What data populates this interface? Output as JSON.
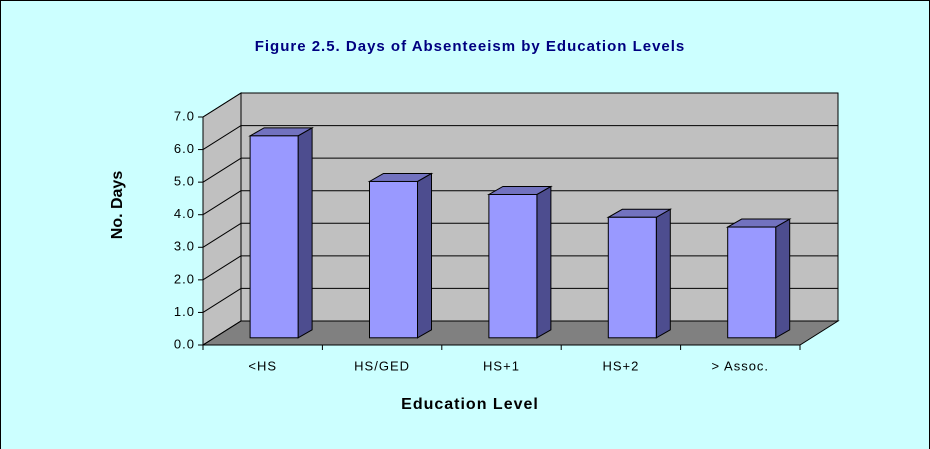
{
  "chart_data": {
    "type": "bar3d",
    "title": "Figure 2.5. Days of Absenteeism by Education Levels",
    "x_label": "Education Level",
    "y_label": "No. Days",
    "categories": [
      "<HS",
      "HS/GED",
      "HS+1",
      "HS+2",
      "> Assoc."
    ],
    "values": [
      6.2,
      4.8,
      4.4,
      3.7,
      3.4
    ],
    "color": "#9999ff",
    "ylim": [
      0,
      7
    ],
    "yticks": [
      {
        "value": 0,
        "label": "0.0"
      },
      {
        "value": 1,
        "label": "1.0"
      },
      {
        "value": 2,
        "label": "2.0"
      },
      {
        "value": 3,
        "label": "3.0"
      },
      {
        "value": 4,
        "label": "4.0"
      },
      {
        "value": 5,
        "label": "5.0"
      },
      {
        "value": 6,
        "label": "6.0"
      },
      {
        "value": 7,
        "label": "7.0"
      }
    ],
    "grid": true
  }
}
